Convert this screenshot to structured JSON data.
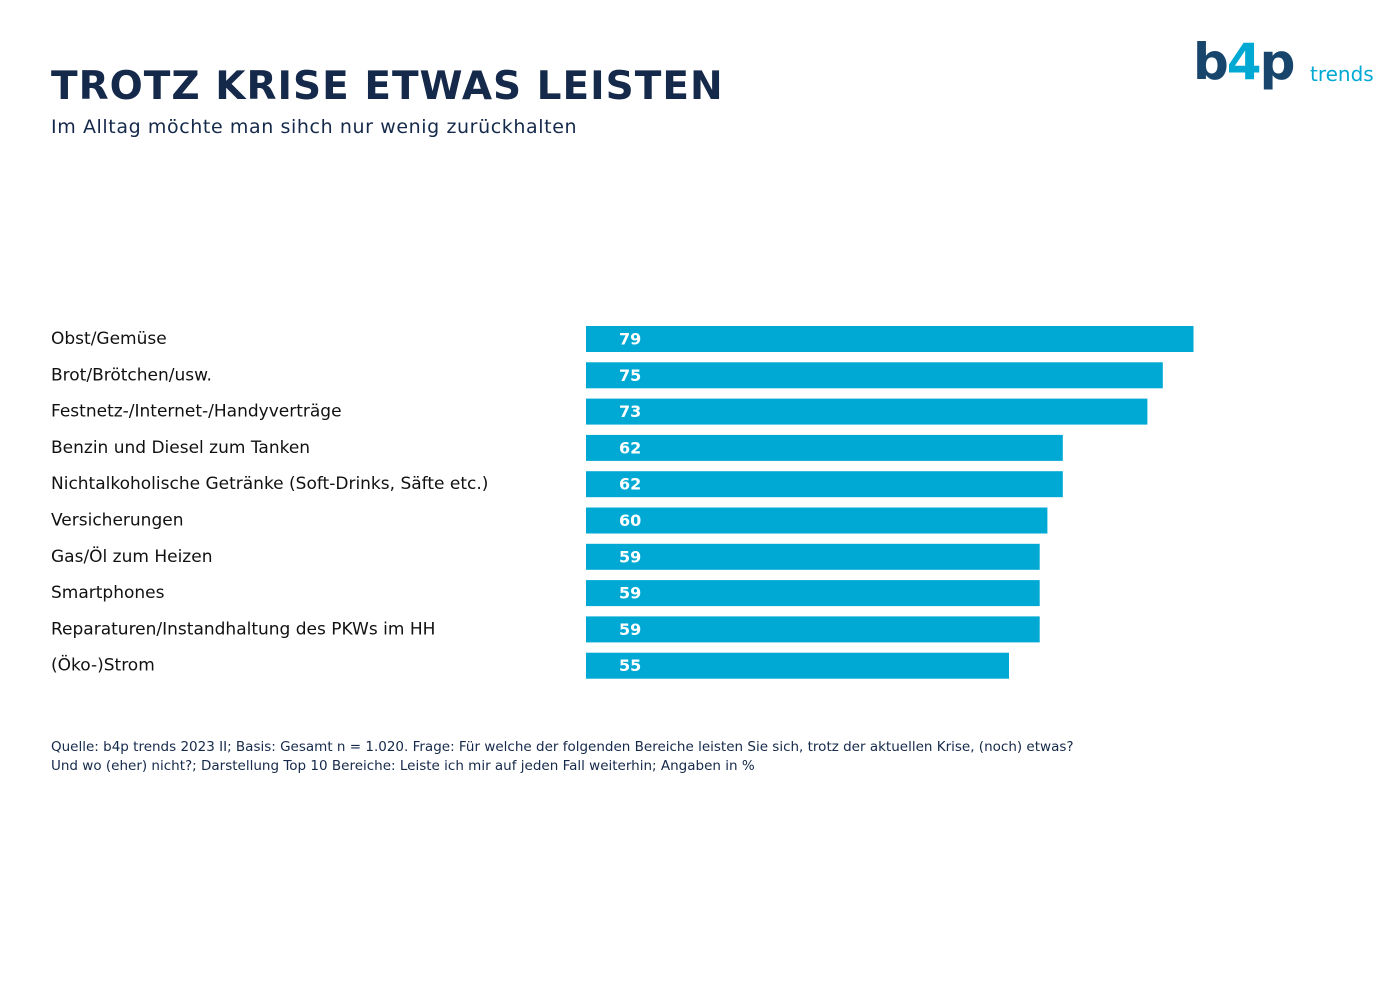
{
  "header": {
    "title": "TROTZ KRISE ETWAS LEISTEN",
    "subtitle": "Im Alltag möchte man sihch nur wenig zurückhalten"
  },
  "logo": {
    "main_left": "b",
    "main_accent": "4",
    "main_right": "p",
    "sub": "trends"
  },
  "colors": {
    "bar": "#00a9d4",
    "title": "#15294a",
    "logo_dark": "#18456b",
    "logo_accent": "#00a9d4"
  },
  "chart_data": {
    "type": "bar",
    "orientation": "horizontal",
    "categories": [
      "Obst/Gemüse",
      "Brot/Brötchen/usw.",
      "Festnetz-/Internet-/Handyverträge",
      "Benzin und Diesel zum Tanken",
      "Nichtalkoholische Getränke (Soft-Drinks, Säfte etc.)",
      "Versicherungen",
      "Gas/Öl zum Heizen",
      "Smartphones",
      "Reparaturen/Instandhaltung des PKWs im HH",
      "(Öko-)Strom"
    ],
    "values": [
      79,
      75,
      73,
      62,
      62,
      60,
      59,
      59,
      59,
      55
    ],
    "data_labels": true,
    "grid": false,
    "legend": "none"
  },
  "footnote": {
    "line1": "Quelle: b4p trends 2023 II; Basis: Gesamt n = 1.020. Frage: Für welche der folgenden Bereiche leisten Sie sich, trotz der aktuellen Krise, (noch) etwas?",
    "line2": "Und wo (eher) nicht?; Darstellung Top 10 Bereiche: Leiste ich mir auf jeden Fall weiterhin; Angaben in %"
  }
}
